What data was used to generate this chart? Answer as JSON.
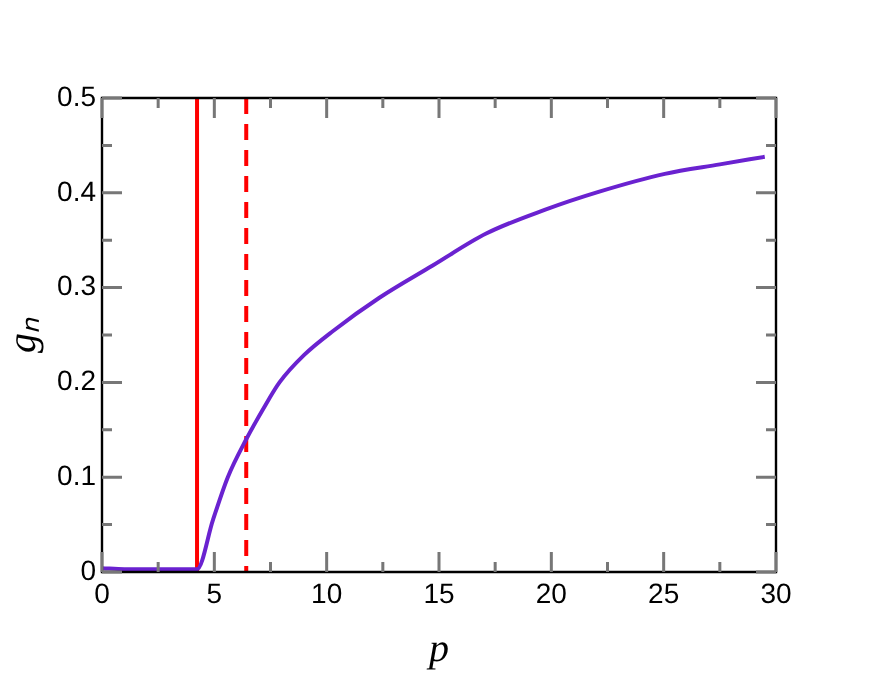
{
  "chart_data": {
    "type": "line",
    "xlabel": "p",
    "ylabel": "gₙ",
    "x": [
      0,
      1,
      2,
      3,
      4.23,
      4.94,
      5.6,
      6.42,
      7.2,
      7.9,
      9,
      10.27,
      12.33,
      14.7,
      17.1,
      19.7,
      22.1,
      25.05,
      27.5,
      29.5
    ],
    "series": [
      {
        "color": "#6a22d0",
        "values": [
          0.004,
          0.003,
          0.003,
          0.003,
          0.003,
          0.055,
          0.1,
          0.14,
          0.173,
          0.2,
          0.229,
          0.254,
          0.289,
          0.323,
          0.357,
          0.382,
          0.401,
          0.42,
          0.43,
          0.438
        ]
      }
    ],
    "xlim": [
      0,
      30
    ],
    "ylim": [
      0,
      0.5
    ],
    "xticks": [
      0,
      {
        "value": 2.5,
        "label": null
      },
      5,
      {
        "value": 7.5,
        "label": null
      },
      10,
      {
        "value": 12.5,
        "label": null
      },
      15,
      {
        "value": 17.5,
        "label": null
      },
      20,
      {
        "value": 22.5,
        "label": null
      },
      25,
      {
        "value": 27.5,
        "label": null
      },
      30
    ],
    "yticks": [
      0,
      {
        "value": 0.05,
        "label": null
      },
      0.1,
      {
        "value": 0.15,
        "label": null
      },
      0.2,
      {
        "value": 0.25,
        "label": null
      },
      0.3,
      {
        "value": 0.35,
        "label": null
      },
      0.4,
      {
        "value": 0.45,
        "label": null
      },
      0.5
    ],
    "ref_lines": [
      {
        "axis": "x",
        "value": 4.23,
        "color": "#ff0000",
        "line_style": "solid"
      },
      {
        "axis": "x",
        "value": 6.42,
        "color": "#ff0000",
        "line_style": "dashed"
      }
    ],
    "grid": false,
    "legend": false,
    "marker": "none",
    "line_style": "solid"
  }
}
